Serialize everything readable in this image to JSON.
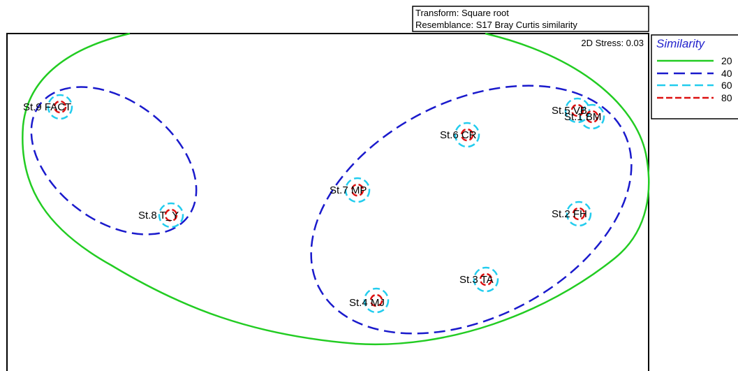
{
  "chart_data": {
    "type": "scatter",
    "subtype": "nMDS ordination with similarity contours",
    "transform_line": "Transform: Square root",
    "resemblance_line": "Resemblance: S17 Bray Curtis similarity",
    "stress_label": "2D Stress: 0.03",
    "legend": {
      "title": "Similarity",
      "placement": "right",
      "entries": [
        {
          "label": "20",
          "color": "#22cc22",
          "dash": "solid"
        },
        {
          "label": "40",
          "color": "#1a1acc",
          "dash": "long-dash"
        },
        {
          "label": "60",
          "color": "#22ccee",
          "dash": "dash"
        },
        {
          "label": "80",
          "color": "#dd1111",
          "dash": "short-dash"
        }
      ]
    },
    "points": [
      {
        "label": "St.9 FACT"
      },
      {
        "label": "St.8 T_Y"
      },
      {
        "label": "St.7 MP"
      },
      {
        "label": "St.6 CR"
      },
      {
        "label": "St.5 VB"
      },
      {
        "label": "St.1 BM"
      },
      {
        "label": "St.2 FH"
      },
      {
        "label": "St.3 TA"
      },
      {
        "label": "St.4 MJ"
      }
    ],
    "groups_20": [
      [
        "St.9 FACT",
        "St.8 T_Y",
        "St.7 MP",
        "St.6 CR",
        "St.5 VB",
        "St.1 BM",
        "St.2 FH",
        "St.3 TA",
        "St.4 MJ"
      ]
    ],
    "groups_40": [
      [
        "St.9 FACT",
        "St.8 T_Y"
      ],
      [
        "St.7 MP",
        "St.6 CR",
        "St.5 VB",
        "St.1 BM",
        "St.2 FH",
        "St.3 TA",
        "St.4 MJ"
      ]
    ]
  }
}
